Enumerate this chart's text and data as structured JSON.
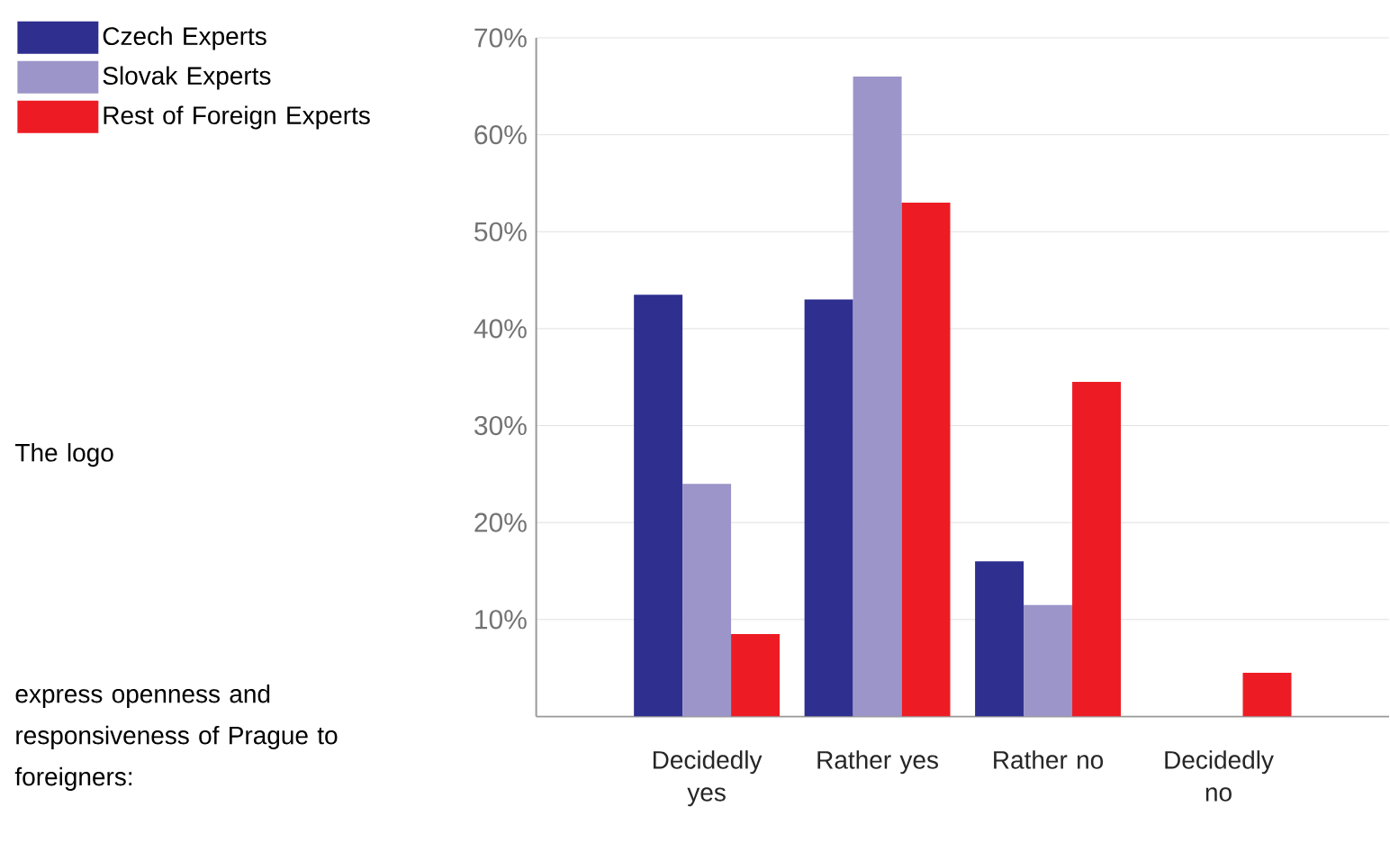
{
  "chart_data": {
    "type": "bar",
    "categories": [
      "Decidedly yes",
      "Rather yes",
      "Rather no",
      "Decidedly no"
    ],
    "series": [
      {
        "name": "Czech Experts",
        "color": "#2e2f8f",
        "values": [
          43.5,
          43,
          16,
          0
        ]
      },
      {
        "name": "Slovak Experts",
        "color": "#9b95c9",
        "values": [
          24,
          66,
          11.5,
          0
        ]
      },
      {
        "name": "Rest of Foreign Experts",
        "color": "#ed1c24",
        "values": [
          8.5,
          53,
          34.5,
          4.5
        ]
      }
    ],
    "ylim": [
      0,
      70
    ],
    "yticks": [
      {
        "value": 10,
        "label": "10%"
      },
      {
        "value": 20,
        "label": "20%"
      },
      {
        "value": 30,
        "label": "30%"
      },
      {
        "value": 40,
        "label": "40%"
      },
      {
        "value": 50,
        "label": "50%"
      },
      {
        "value": 60,
        "label": "60%"
      },
      {
        "value": 70,
        "label": "70%"
      }
    ],
    "grid": "y",
    "legend": "top left",
    "annotations": [
      "The logo",
      "express openness and responsiveness of Prague to foreigners:"
    ]
  }
}
